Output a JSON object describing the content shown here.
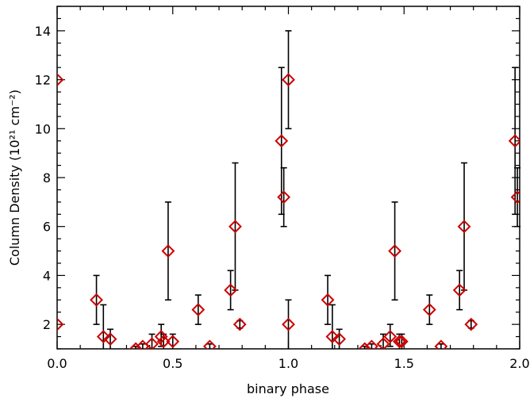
{
  "chart_data": {
    "type": "scatter",
    "title": "",
    "xlabel": "binary phase",
    "ylabel": "Column Density (10²¹ cm⁻²)",
    "xlim": [
      0.0,
      2.0
    ],
    "ylim": [
      1.0,
      15.0
    ],
    "x_ticks": [
      "0.0",
      "0.5",
      "1.0",
      "1.5",
      "2.0"
    ],
    "y_ticks": [
      "2",
      "4",
      "6",
      "8",
      "10",
      "12",
      "14"
    ],
    "x_tick_values": [
      0.0,
      0.5,
      1.0,
      1.5,
      2.0
    ],
    "y_tick_values": [
      2,
      4,
      6,
      8,
      10,
      12,
      14
    ],
    "grid": false,
    "marker": "diamond",
    "marker_color": "#cc0000",
    "errorbar_color": "#000000",
    "points": [
      {
        "x": 0.0,
        "y": 12.0,
        "lo": 12.0,
        "hi": 12.0
      },
      {
        "x": 0.0,
        "y": 2.0,
        "lo": 2.0,
        "hi": 2.0
      },
      {
        "x": 0.17,
        "y": 3.0,
        "lo": 2.0,
        "hi": 4.0
      },
      {
        "x": 0.2,
        "y": 1.5,
        "lo": 1.0,
        "hi": 2.8
      },
      {
        "x": 0.23,
        "y": 1.4,
        "lo": 1.0,
        "hi": 1.8
      },
      {
        "x": 0.34,
        "y": 1.0,
        "lo": 1.0,
        "hi": 1.1
      },
      {
        "x": 0.37,
        "y": 1.1,
        "lo": 1.0,
        "hi": 1.2
      },
      {
        "x": 0.41,
        "y": 1.2,
        "lo": 1.0,
        "hi": 1.6
      },
      {
        "x": 0.45,
        "y": 1.5,
        "lo": 1.1,
        "hi": 2.0
      },
      {
        "x": 0.46,
        "y": 1.3,
        "lo": 1.0,
        "hi": 1.6
      },
      {
        "x": 0.48,
        "y": 5.0,
        "lo": 3.0,
        "hi": 7.0
      },
      {
        "x": 0.5,
        "y": 1.3,
        "lo": 1.0,
        "hi": 1.6
      },
      {
        "x": 0.61,
        "y": 2.6,
        "lo": 2.0,
        "hi": 3.2
      },
      {
        "x": 0.66,
        "y": 1.1,
        "lo": 1.0,
        "hi": 1.2
      },
      {
        "x": 0.75,
        "y": 3.4,
        "lo": 2.6,
        "hi": 4.2
      },
      {
        "x": 0.77,
        "y": 6.0,
        "lo": 3.4,
        "hi": 8.6
      },
      {
        "x": 0.79,
        "y": 2.0,
        "lo": 1.85,
        "hi": 2.15
      },
      {
        "x": 0.97,
        "y": 9.5,
        "lo": 6.5,
        "hi": 12.5
      },
      {
        "x": 0.98,
        "y": 7.2,
        "lo": 6.0,
        "hi": 8.4
      },
      {
        "x": 1.0,
        "y": 12.0,
        "lo": 10.0,
        "hi": 14.0
      },
      {
        "x": 1.0,
        "y": 2.0,
        "lo": 1.0,
        "hi": 3.0
      },
      {
        "x": 1.17,
        "y": 3.0,
        "lo": 2.0,
        "hi": 4.0
      },
      {
        "x": 1.19,
        "y": 1.5,
        "lo": 1.0,
        "hi": 2.8
      },
      {
        "x": 1.22,
        "y": 1.4,
        "lo": 1.0,
        "hi": 1.8
      },
      {
        "x": 1.33,
        "y": 1.0,
        "lo": 1.0,
        "hi": 1.1
      },
      {
        "x": 1.36,
        "y": 1.1,
        "lo": 1.0,
        "hi": 1.2
      },
      {
        "x": 1.41,
        "y": 1.2,
        "lo": 1.0,
        "hi": 1.6
      },
      {
        "x": 1.44,
        "y": 1.5,
        "lo": 1.1,
        "hi": 2.0
      },
      {
        "x": 1.46,
        "y": 5.0,
        "lo": 3.0,
        "hi": 7.0
      },
      {
        "x": 1.48,
        "y": 1.3,
        "lo": 1.0,
        "hi": 1.6
      },
      {
        "x": 1.49,
        "y": 1.3,
        "lo": 1.0,
        "hi": 1.6
      },
      {
        "x": 1.61,
        "y": 2.6,
        "lo": 2.0,
        "hi": 3.2
      },
      {
        "x": 1.66,
        "y": 1.1,
        "lo": 1.0,
        "hi": 1.2
      },
      {
        "x": 1.74,
        "y": 3.4,
        "lo": 2.6,
        "hi": 4.2
      },
      {
        "x": 1.76,
        "y": 6.0,
        "lo": 3.4,
        "hi": 8.6
      },
      {
        "x": 1.79,
        "y": 2.0,
        "lo": 1.85,
        "hi": 2.15
      },
      {
        "x": 1.98,
        "y": 9.5,
        "lo": 6.5,
        "hi": 12.5
      },
      {
        "x": 1.99,
        "y": 7.2,
        "lo": 6.0,
        "hi": 8.4
      }
    ]
  }
}
